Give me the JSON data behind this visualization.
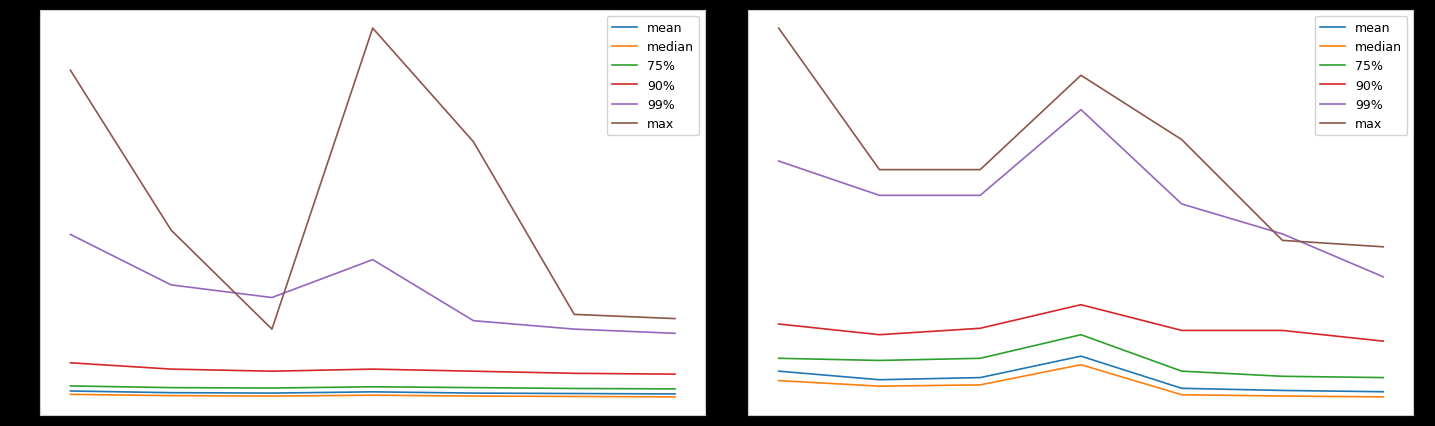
{
  "left": {
    "x": [
      0,
      1,
      2,
      3,
      4,
      5,
      6
    ],
    "mean": [
      0.048,
      0.044,
      0.043,
      0.046,
      0.043,
      0.042,
      0.041
    ],
    "median": [
      0.04,
      0.037,
      0.036,
      0.038,
      0.036,
      0.035,
      0.034
    ],
    "p75": [
      0.06,
      0.056,
      0.055,
      0.058,
      0.056,
      0.054,
      0.053
    ],
    "p90": [
      0.115,
      0.1,
      0.095,
      0.1,
      0.095,
      0.09,
      0.088
    ],
    "p99": [
      0.42,
      0.3,
      0.27,
      0.36,
      0.215,
      0.195,
      0.185
    ],
    "max": [
      0.81,
      0.43,
      0.195,
      0.91,
      0.64,
      0.23,
      0.22
    ]
  },
  "right": {
    "x": [
      0,
      1,
      2,
      3,
      4,
      5,
      6
    ],
    "mean": [
      0.17,
      0.15,
      0.155,
      0.205,
      0.13,
      0.125,
      0.122
    ],
    "median": [
      0.148,
      0.135,
      0.138,
      0.185,
      0.115,
      0.112,
      0.11
    ],
    "p75": [
      0.2,
      0.195,
      0.2,
      0.255,
      0.17,
      0.158,
      0.155
    ],
    "p90": [
      0.28,
      0.255,
      0.27,
      0.325,
      0.265,
      0.265,
      0.24
    ],
    "p99": [
      0.66,
      0.58,
      0.58,
      0.78,
      0.56,
      0.49,
      0.39
    ],
    "max": [
      0.97,
      0.64,
      0.64,
      0.86,
      0.71,
      0.475,
      0.46
    ]
  },
  "colors": {
    "mean": "#1f77b4",
    "median": "#ff7f0e",
    "p75": "#2ca02c",
    "p90": "#d62728",
    "p99": "#9467bd",
    "max": "#8c564b"
  },
  "legend_labels": [
    "mean",
    "median",
    "75%",
    "90%",
    "99%",
    "max"
  ],
  "fig_facecolor": "#000000",
  "ax_facecolor": "#ffffff"
}
